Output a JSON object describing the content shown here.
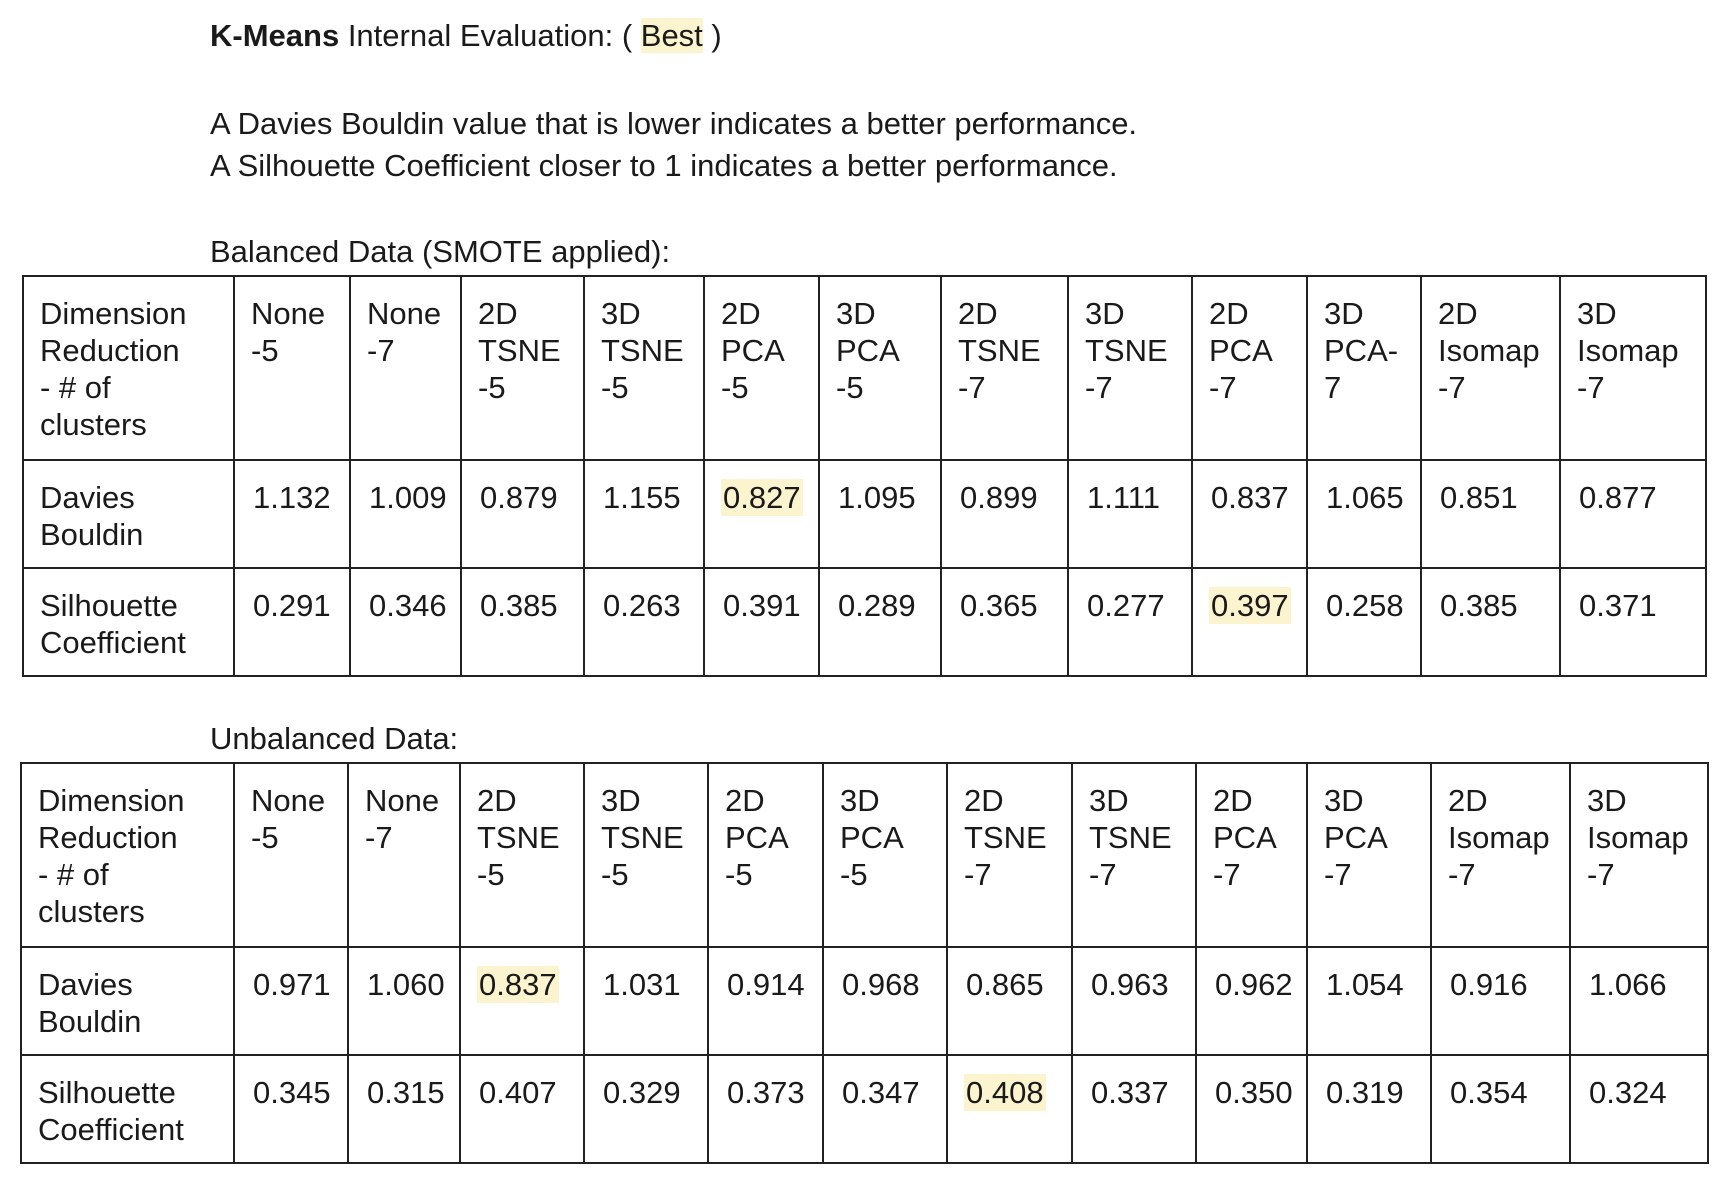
{
  "header": {
    "title_bold": "K-Means",
    "title_rest": " Internal Evaluation: ( ",
    "title_best": "Best",
    "title_end": " )"
  },
  "notes": {
    "line1": "A Davies Bouldin value that is lower indicates a better performance.",
    "line2": "A Silhouette Coefficient closer to 1 indicates a better performance."
  },
  "colors": {
    "highlight": "#fcf3cf",
    "border": "#222222"
  },
  "balanced": {
    "label": "Balanced Data (SMOTE applied):",
    "row_header": [
      "Dimension",
      "Reduction",
      "- # of",
      "clusters"
    ],
    "columns": [
      [
        "None",
        "-5"
      ],
      [
        "None",
        "-7"
      ],
      [
        "2D",
        "TSNE",
        "-5"
      ],
      [
        "3D",
        "TSNE",
        "-5"
      ],
      [
        "2D",
        "PCA",
        "-5"
      ],
      [
        "3D",
        "PCA",
        "-5"
      ],
      [
        "2D",
        "TSNE",
        "-7"
      ],
      [
        "3D",
        "TSNE",
        "-7"
      ],
      [
        "2D",
        "PCA",
        "-7"
      ],
      [
        "3D",
        "PCA-",
        "7"
      ],
      [
        "2D",
        "Isomap",
        "-7"
      ],
      [
        "3D",
        "Isomap",
        "-7"
      ]
    ],
    "rows": [
      {
        "label": [
          "Davies",
          "Bouldin"
        ],
        "values": [
          "1.132",
          "1.009",
          "0.879",
          "1.155",
          "0.827",
          "1.095",
          "0.899",
          "1.111",
          "0.837",
          "1.065",
          "0.851",
          "0.877"
        ],
        "best_index": 4
      },
      {
        "label": [
          "Silhouette",
          "Coefficient"
        ],
        "values": [
          "0.291",
          "0.346",
          "0.385",
          "0.263",
          "0.391",
          "0.289",
          "0.365",
          "0.277",
          "0.397",
          "0.258",
          "0.385",
          "0.371"
        ],
        "best_index": 8
      }
    ]
  },
  "unbalanced": {
    "label": "Unbalanced Data:",
    "row_header": [
      "Dimension",
      "Reduction",
      "- # of",
      "clusters"
    ],
    "columns": [
      [
        "None",
        "-5"
      ],
      [
        "None",
        "-7"
      ],
      [
        "2D",
        "TSNE",
        "-5"
      ],
      [
        "3D",
        "TSNE",
        "-5"
      ],
      [
        "2D",
        "PCA",
        "-5"
      ],
      [
        "3D",
        "PCA",
        "-5"
      ],
      [
        "2D",
        "TSNE",
        "-7"
      ],
      [
        "3D",
        "TSNE",
        "-7"
      ],
      [
        "2D",
        "PCA",
        "-7"
      ],
      [
        "3D",
        "PCA",
        "-7"
      ],
      [
        "2D",
        "Isomap",
        "-7"
      ],
      [
        "3D",
        "Isomap",
        "-7"
      ]
    ],
    "rows": [
      {
        "label": [
          "Davies",
          "Bouldin"
        ],
        "values": [
          "0.971",
          "1.060",
          "0.837",
          "1.031",
          "0.914",
          "0.968",
          "0.865",
          "0.963",
          "0.962",
          "1.054",
          "0.916",
          "1.066"
        ],
        "best_index": 2
      },
      {
        "label": [
          "Silhouette",
          "Coefficient"
        ],
        "values": [
          "0.345",
          "0.315",
          "0.407",
          "0.329",
          "0.373",
          "0.347",
          "0.408",
          "0.337",
          "0.350",
          "0.319",
          "0.354",
          "0.324"
        ],
        "best_index": 6
      }
    ]
  }
}
